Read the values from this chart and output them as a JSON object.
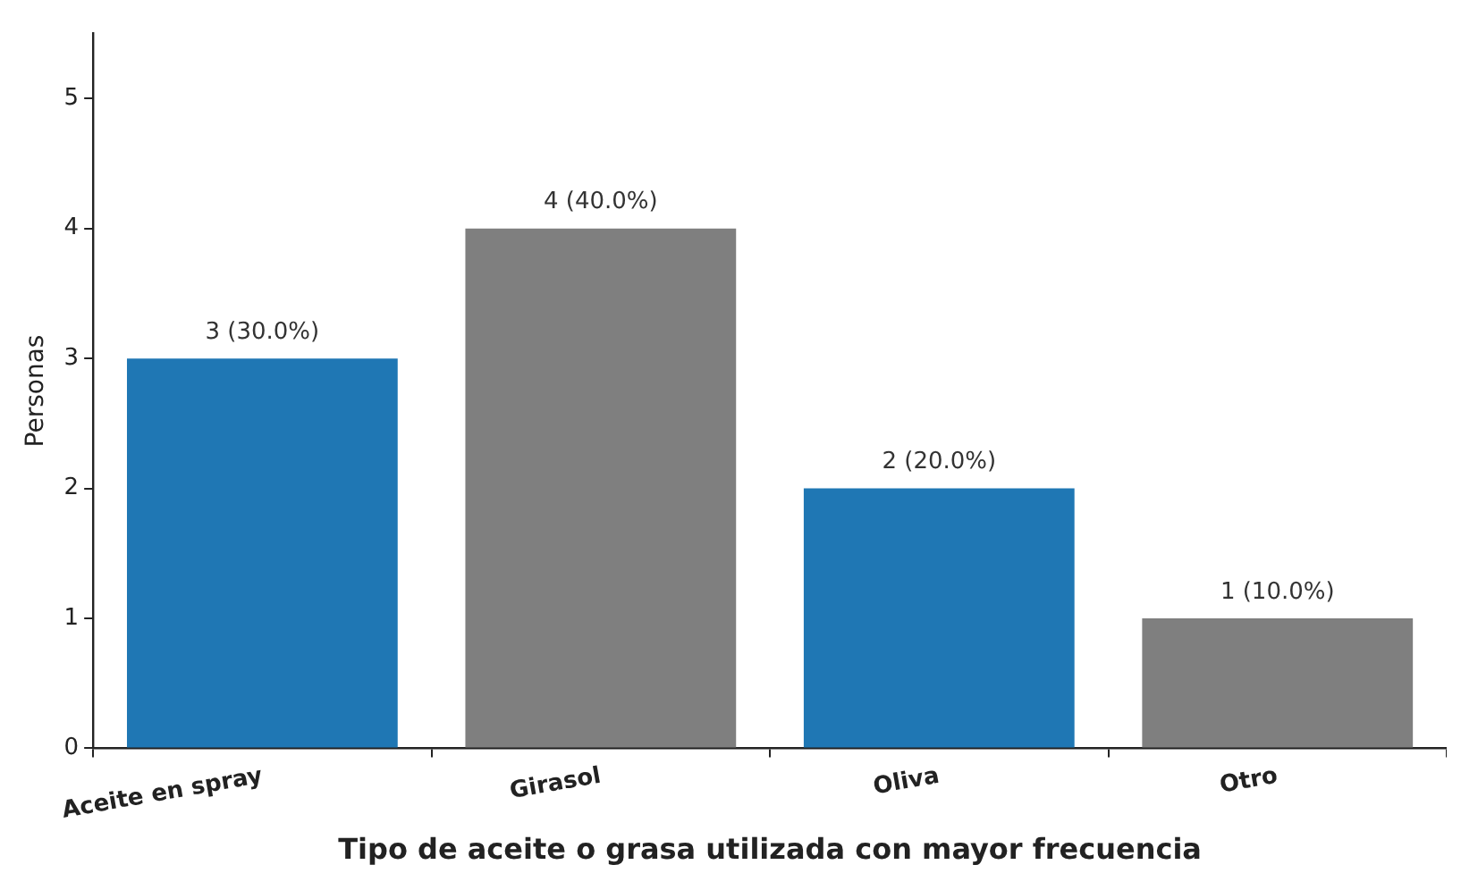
{
  "chart_data": {
    "type": "bar",
    "xlabel": "Tipo de aceite o grasa utilizada con mayor frecuencia",
    "ylabel": "Personas",
    "categories": [
      "Aceite en spray",
      "Girasol",
      "Oliva",
      "Otro"
    ],
    "values": [
      3,
      4,
      2,
      1
    ],
    "colors": [
      "#1f77b4",
      "#7f7f7f",
      "#1f77b4",
      "#7f7f7f"
    ],
    "value_labels": [
      "3 (30.0%)",
      "4 (40.0%)",
      "2 (20.0%)",
      "1 (10.0%)"
    ],
    "ylim": [
      0,
      5.5
    ],
    "yticks": [
      0,
      1,
      2,
      3,
      4,
      5
    ],
    "grid": false,
    "legend": false
  }
}
